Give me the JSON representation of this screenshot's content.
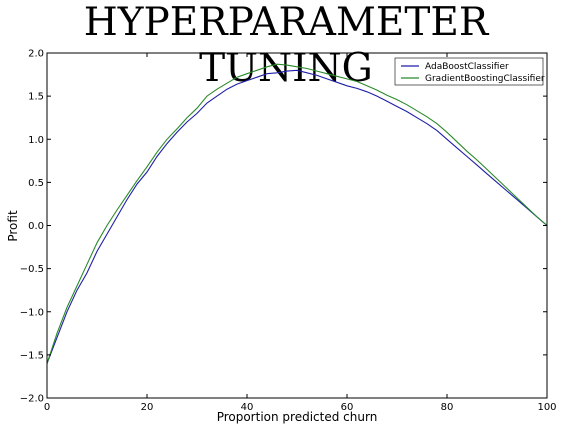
{
  "slide": {
    "title": "HYPERPARAMETER TUNING"
  },
  "chart_data": {
    "type": "line",
    "xlabel": "Proportion predicted churn",
    "ylabel": "Profit",
    "xlim": [
      0,
      100
    ],
    "ylim": [
      -2.0,
      2.0
    ],
    "x_ticks": [
      0,
      20,
      40,
      60,
      80,
      100
    ],
    "y_ticks": [
      -2.0,
      -1.5,
      -1.0,
      -0.5,
      0.0,
      0.5,
      1.0,
      1.5,
      2.0
    ],
    "x_tick_labels": [
      "0",
      "20",
      "40",
      "60",
      "80",
      "100"
    ],
    "y_tick_labels": [
      "−2.0",
      "−1.5",
      "−1.0",
      "−0.5",
      "0.0",
      "0.5",
      "1.0",
      "1.5",
      "2.0"
    ],
    "grid": false,
    "legend_position": "top-right",
    "x": [
      0,
      2,
      4,
      6,
      8,
      10,
      12,
      14,
      16,
      18,
      20,
      22,
      24,
      26,
      28,
      30,
      32,
      34,
      36,
      38,
      40,
      42,
      44,
      46,
      48,
      50,
      52,
      54,
      56,
      58,
      60,
      62,
      64,
      66,
      68,
      70,
      72,
      74,
      76,
      78,
      80,
      82,
      84,
      86,
      88,
      90,
      92,
      94,
      96,
      98,
      100
    ],
    "series": [
      {
        "name": "AdaBoostClassifier",
        "color": "#1f1fa8",
        "values": [
          -1.6,
          -1.3,
          -1.0,
          -0.75,
          -0.55,
          -0.3,
          -0.1,
          0.1,
          0.3,
          0.48,
          0.62,
          0.8,
          0.95,
          1.08,
          1.2,
          1.3,
          1.42,
          1.5,
          1.58,
          1.64,
          1.68,
          1.72,
          1.76,
          1.77,
          1.79,
          1.8,
          1.77,
          1.74,
          1.7,
          1.66,
          1.62,
          1.59,
          1.55,
          1.5,
          1.44,
          1.38,
          1.32,
          1.25,
          1.18,
          1.1,
          1.0,
          0.9,
          0.8,
          0.7,
          0.6,
          0.5,
          0.4,
          0.3,
          0.2,
          0.1,
          0.0
        ]
      },
      {
        "name": "GradientBoostingClassifier",
        "color": "#2a8a2a",
        "values": [
          -1.6,
          -1.25,
          -0.95,
          -0.7,
          -0.45,
          -0.2,
          0.0,
          0.18,
          0.35,
          0.52,
          0.68,
          0.85,
          1.0,
          1.12,
          1.25,
          1.36,
          1.5,
          1.58,
          1.65,
          1.72,
          1.76,
          1.8,
          1.84,
          1.87,
          1.86,
          1.84,
          1.82,
          1.79,
          1.76,
          1.73,
          1.7,
          1.67,
          1.62,
          1.57,
          1.51,
          1.46,
          1.4,
          1.33,
          1.26,
          1.18,
          1.08,
          0.97,
          0.86,
          0.76,
          0.65,
          0.54,
          0.43,
          0.32,
          0.21,
          0.1,
          0.0
        ]
      }
    ]
  }
}
